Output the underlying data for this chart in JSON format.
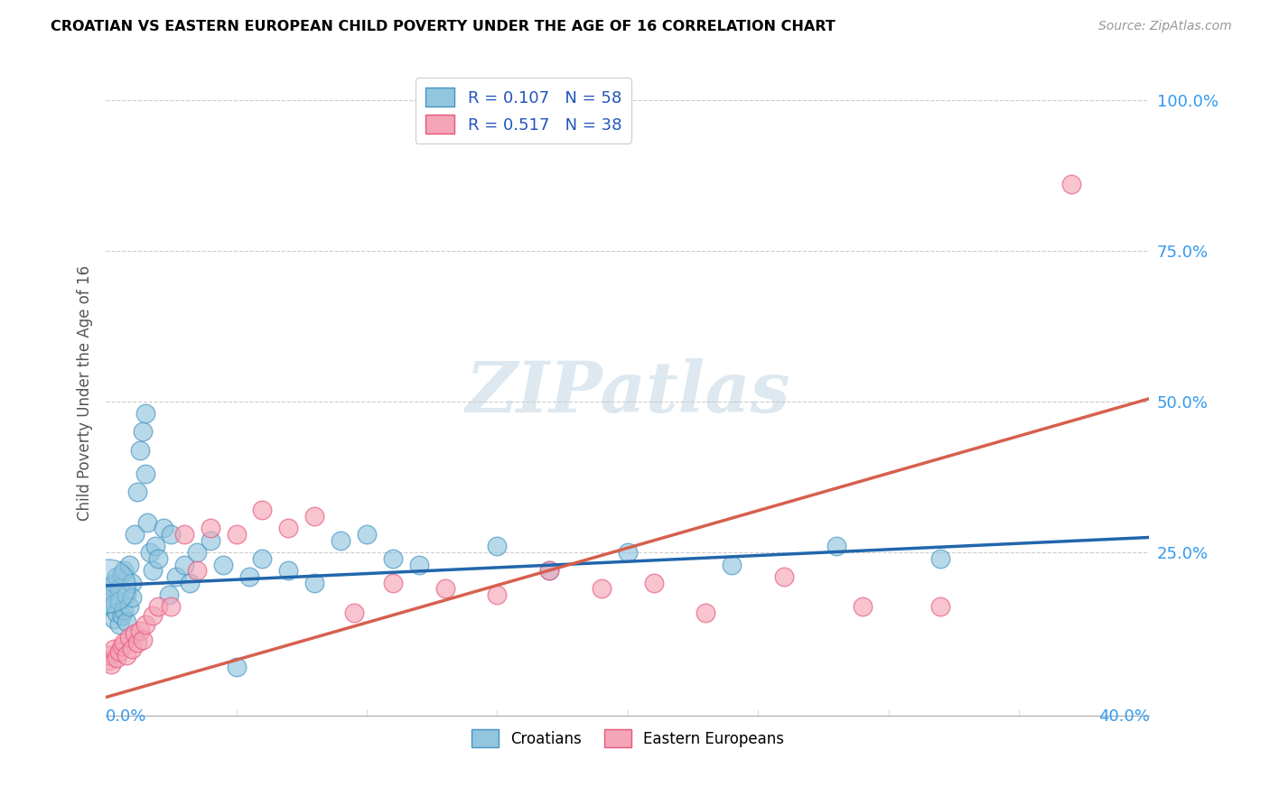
{
  "title": "CROATIAN VS EASTERN EUROPEAN CHILD POVERTY UNDER THE AGE OF 16 CORRELATION CHART",
  "source": "Source: ZipAtlas.com",
  "ylabel": "Child Poverty Under the Age of 16",
  "xmin": 0.0,
  "xmax": 0.4,
  "ymin": -0.02,
  "ymax": 1.05,
  "croatians_R": 0.107,
  "croatians_N": 58,
  "eastern_R": 0.517,
  "eastern_N": 38,
  "blue_color": "#92c5de",
  "pink_color": "#f4a5b8",
  "blue_edge_color": "#4393c3",
  "pink_edge_color": "#e8567a",
  "blue_line_color": "#2166ac",
  "pink_line_color": "#d6604d",
  "legend_text_color": "#2255bb",
  "watermark_color": "#dde8f0",
  "blue_line_y0": 0.195,
  "blue_line_y1": 0.275,
  "pink_line_y0": 0.01,
  "pink_line_y1": 0.505,
  "croatians_x": [
    0.001,
    0.001,
    0.002,
    0.002,
    0.003,
    0.003,
    0.003,
    0.004,
    0.004,
    0.005,
    0.005,
    0.005,
    0.006,
    0.006,
    0.007,
    0.007,
    0.008,
    0.008,
    0.009,
    0.009,
    0.01,
    0.01,
    0.011,
    0.012,
    0.013,
    0.014,
    0.015,
    0.015,
    0.016,
    0.017,
    0.018,
    0.019,
    0.02,
    0.022,
    0.024,
    0.025,
    0.027,
    0.03,
    0.032,
    0.035,
    0.04,
    0.045,
    0.05,
    0.055,
    0.06,
    0.07,
    0.08,
    0.09,
    0.1,
    0.11,
    0.12,
    0.15,
    0.17,
    0.2,
    0.24,
    0.28,
    0.32,
    0.001
  ],
  "croatians_y": [
    0.185,
    0.175,
    0.16,
    0.195,
    0.14,
    0.2,
    0.165,
    0.15,
    0.21,
    0.13,
    0.19,
    0.17,
    0.145,
    0.215,
    0.155,
    0.22,
    0.18,
    0.135,
    0.23,
    0.16,
    0.2,
    0.175,
    0.28,
    0.35,
    0.42,
    0.45,
    0.38,
    0.48,
    0.3,
    0.25,
    0.22,
    0.26,
    0.24,
    0.29,
    0.18,
    0.28,
    0.21,
    0.23,
    0.2,
    0.25,
    0.27,
    0.23,
    0.06,
    0.21,
    0.24,
    0.22,
    0.2,
    0.27,
    0.28,
    0.24,
    0.23,
    0.26,
    0.22,
    0.25,
    0.23,
    0.26,
    0.24,
    0.195
  ],
  "croatians_large": [
    false,
    false,
    false,
    false,
    false,
    false,
    false,
    false,
    false,
    false,
    false,
    false,
    false,
    false,
    false,
    false,
    false,
    false,
    false,
    false,
    false,
    false,
    false,
    false,
    false,
    false,
    false,
    false,
    false,
    false,
    false,
    false,
    false,
    false,
    false,
    false,
    false,
    false,
    false,
    false,
    false,
    false,
    false,
    false,
    false,
    false,
    false,
    false,
    false,
    false,
    false,
    false,
    false,
    false,
    false,
    false,
    false,
    true
  ],
  "eastern_x": [
    0.001,
    0.001,
    0.002,
    0.003,
    0.004,
    0.005,
    0.006,
    0.007,
    0.008,
    0.009,
    0.01,
    0.011,
    0.012,
    0.013,
    0.014,
    0.015,
    0.018,
    0.02,
    0.025,
    0.03,
    0.035,
    0.04,
    0.05,
    0.06,
    0.07,
    0.08,
    0.095,
    0.11,
    0.13,
    0.15,
    0.17,
    0.19,
    0.21,
    0.23,
    0.26,
    0.29,
    0.32,
    0.37
  ],
  "eastern_y": [
    0.07,
    0.08,
    0.065,
    0.09,
    0.075,
    0.085,
    0.095,
    0.1,
    0.08,
    0.11,
    0.09,
    0.115,
    0.1,
    0.12,
    0.105,
    0.13,
    0.145,
    0.16,
    0.16,
    0.28,
    0.22,
    0.29,
    0.28,
    0.32,
    0.29,
    0.31,
    0.15,
    0.2,
    0.19,
    0.18,
    0.22,
    0.19,
    0.2,
    0.15,
    0.21,
    0.16,
    0.16,
    0.86
  ]
}
